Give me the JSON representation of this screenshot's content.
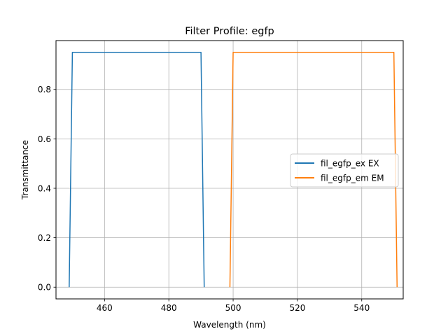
{
  "chart_data": {
    "type": "line",
    "title": "Filter Profile: egfp",
    "xlabel": "Wavelength (nm)",
    "ylabel": "Transmittance",
    "xlim": [
      444.9,
      552.9
    ],
    "ylim": [
      -0.0475,
      0.9975
    ],
    "x_ticks": [
      460,
      480,
      500,
      520,
      540
    ],
    "x_tick_labels": [
      "460",
      "480",
      "500",
      "520",
      "540"
    ],
    "y_ticks": [
      0.0,
      0.2,
      0.4,
      0.6,
      0.8
    ],
    "y_tick_labels": [
      "0.0",
      "0.2",
      "0.4",
      "0.6",
      "0.8"
    ],
    "grid": true,
    "legend_position": "center-right",
    "series": [
      {
        "name": "fil_egfp_ex EX",
        "color": "#1f77b4",
        "x": [
          449,
          450,
          490,
          491
        ],
        "y": [
          0.0,
          0.95,
          0.95,
          0.0
        ]
      },
      {
        "name": "fil_egfp_em EM",
        "color": "#ff7f0e",
        "x": [
          499,
          500,
          550,
          551
        ],
        "y": [
          0.0,
          0.95,
          0.95,
          0.0
        ]
      }
    ]
  }
}
